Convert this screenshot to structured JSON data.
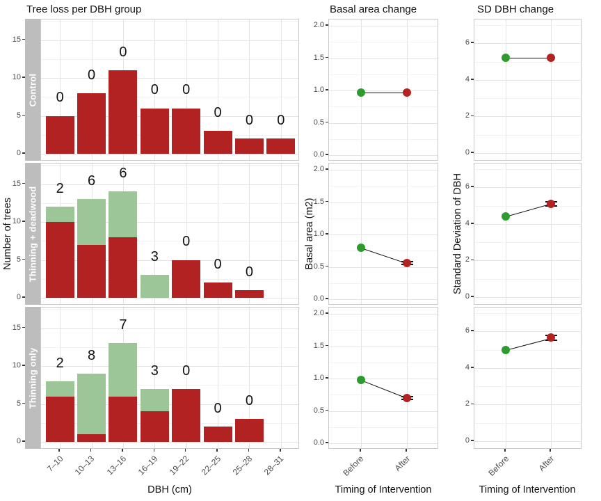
{
  "colors": {
    "bar_red": "#B22222",
    "bar_green": "#9CC697",
    "point_before": "#2E9B2E",
    "point_after": "#B22222",
    "strip_bg": "#BDBDBD",
    "strip_text": "#FFFFFF",
    "grid_major": "#E4E4E4",
    "grid_minor": "#F2F2F2",
    "panel_border": "#C9C9C9",
    "tick_text": "#4D4D4D",
    "line": "#111111"
  },
  "chart_data": [
    {
      "type": "bar",
      "title": "Tree loss per DBH group",
      "xlabel": "DBH (cm)",
      "ylabel": "Number of trees",
      "stacked": true,
      "grid": true,
      "legend": "none",
      "categories": [
        "7–10",
        "10–13",
        "13–16",
        "16–19",
        "19–22",
        "22–25",
        "25–28",
        "28–31"
      ],
      "yticks": [
        "0",
        "5",
        "10",
        "15"
      ],
      "ylim": [
        -1,
        17.7
      ],
      "facets": [
        {
          "row": "Control",
          "red": [
            5,
            8,
            11,
            6,
            6,
            3,
            2,
            2
          ],
          "green": [
            0,
            0,
            0,
            0,
            0,
            0,
            0,
            0
          ],
          "bar_labels": [
            "0",
            "0",
            "0",
            "0",
            "0",
            "0",
            "0",
            "0"
          ]
        },
        {
          "row": "Thinning + deadwood",
          "red": [
            10,
            7,
            8,
            0,
            5,
            2,
            1,
            0
          ],
          "green": [
            2,
            6,
            6,
            3,
            0,
            0,
            0,
            0
          ],
          "bar_labels": [
            "2",
            "6",
            "6",
            "3",
            "0",
            "0",
            "0",
            ""
          ]
        },
        {
          "row": "Thinning only",
          "red": [
            6,
            1,
            6,
            4,
            7,
            2,
            3,
            0
          ],
          "green": [
            2,
            8,
            7,
            3,
            0,
            0,
            0,
            0
          ],
          "bar_labels": [
            "2",
            "8",
            "7",
            "3",
            "0",
            "0",
            "0",
            ""
          ]
        }
      ]
    },
    {
      "type": "line",
      "title": "Basal area change",
      "xlabel": "Timing of Intervention",
      "ylabel": "Basal area (m2)",
      "grid": true,
      "legend": "none",
      "x": [
        "Before",
        "After"
      ],
      "yticks": [
        "0.0",
        "0.5",
        "1.0",
        "1.5",
        "2.0"
      ],
      "ylim": [
        -0.1,
        2.07
      ],
      "facets": [
        {
          "row": "Control",
          "before": 0.97,
          "after": 0.97,
          "after_se": 0
        },
        {
          "row": "Thinning + deadwood",
          "before": 0.8,
          "after": 0.56,
          "after_se": 0.018
        },
        {
          "row": "Thinning only",
          "before": 0.98,
          "after": 0.7,
          "after_se": 0.025
        }
      ]
    },
    {
      "type": "line",
      "title": "SD DBH change",
      "xlabel": "Timing of Intervention",
      "ylabel": "Standard Deviation of DBH",
      "grid": true,
      "legend": "none",
      "x": [
        "Before",
        "After"
      ],
      "yticks": [
        "0",
        "2",
        "4",
        "6"
      ],
      "ylim": [
        -0.46,
        7.3
      ],
      "facets": [
        {
          "row": "Control",
          "before": 5.2,
          "after": 5.2,
          "after_se": 0
        },
        {
          "row": "Thinning + deadwood",
          "before": 4.4,
          "after": 5.1,
          "after_se": 0.1
        },
        {
          "row": "Thinning only",
          "before": 5.0,
          "after": 5.65,
          "after_se": 0.12
        }
      ]
    }
  ]
}
